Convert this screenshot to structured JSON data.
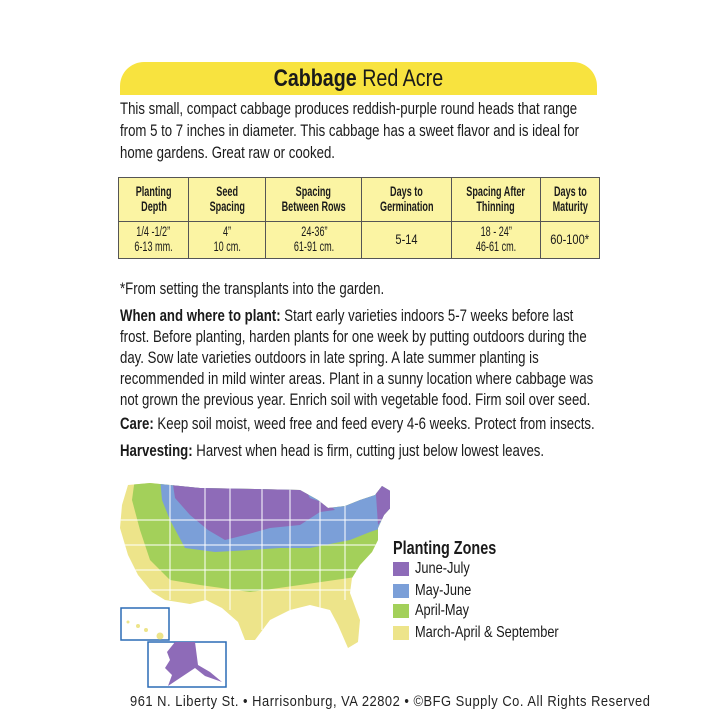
{
  "header": {
    "title_bold": "Cabbage",
    "title_rest": "Red Acre",
    "color": "#f8e33f"
  },
  "description": {
    "lines": [
      "This small, compact cabbage produces reddish-purple round heads that range",
      "from 5 to 7 inches in diameter.  This cabbage has a sweet flavor and is ideal for",
      "home gardens.  Great raw or cooked."
    ]
  },
  "table": {
    "headers": [
      [
        "Planting",
        "Depth"
      ],
      [
        "Seed",
        "Spacing"
      ],
      [
        "Spacing",
        "Between Rows"
      ],
      [
        "Days to",
        "Germination"
      ],
      [
        "Spacing After",
        "Thinning"
      ],
      [
        "Days to",
        "Maturity"
      ]
    ],
    "values": [
      [
        "1/4 -1/2”",
        "6-13 mm."
      ],
      [
        "4”",
        "10 cm."
      ],
      [
        "24-36”",
        "61-91 cm."
      ],
      [
        "5-14"
      ],
      [
        "18 - 24”",
        "46-61 cm."
      ],
      [
        "60-100*"
      ]
    ]
  },
  "footnote": "*From setting the transplants into the garden.",
  "when_where": {
    "label": "When and where to plant:",
    "lines": [
      " Start early varieties indoors 5-7 weeks before last",
      "frost. Before planting, harden plants for one week by putting outdoors during the",
      "day. Sow late varieties outdoors in late spring. A late summer planting is",
      "recommended in mild winter areas. Plant in a sunny location where cabbage was",
      "not grown the previous year. Enrich soil with vegetable food. Firm soil over seed."
    ]
  },
  "care": {
    "label": "Care:",
    "text": " Keep soil moist, weed free and feed every 4-6 weeks. Protect from insects."
  },
  "harvesting": {
    "label": "Harvesting:",
    "text": " Harvest when head is firm, cutting just below lowest leaves."
  },
  "legend": {
    "title": "Planting Zones",
    "items": [
      {
        "label": "June-July",
        "color": "#8e6bb8"
      },
      {
        "label": "May-June",
        "color": "#7b9fd8"
      },
      {
        "label": "April-May",
        "color": "#a3d05a"
      },
      {
        "label": "March-April & September",
        "color": "#ede48a"
      }
    ]
  },
  "footer": "961 N. Liberty St. • Harrisonburg, VA 22802 • ©BFG Supply Co. All Rights Reserved"
}
